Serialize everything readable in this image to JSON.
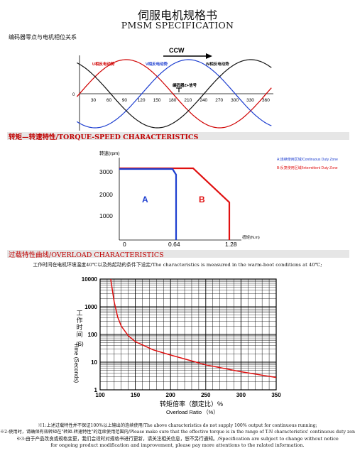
{
  "header": {
    "title_cn": "伺服电机规格书",
    "title_en": "PMSM SPECIFICATION"
  },
  "encoder_section": {
    "label": "编码器零点与电机相位关系",
    "direction": "CCW",
    "u_label": "U相反电动势",
    "v_label": "V相反电动势",
    "w_label": "W相反电动势",
    "z_label": "编码器Z+信号",
    "x_ticks": [
      "0",
      "30",
      "60",
      "90",
      "120",
      "150",
      "180",
      "210",
      "240",
      "270",
      "300",
      "330",
      "360"
    ],
    "colors": {
      "u": "#d00000",
      "v": "#1e3fd0",
      "w": "#111111"
    }
  },
  "torque_section": {
    "band_label": "转矩—转速特性/TORQUE-SPEED  CHARACTERISTICS",
    "ylabel": "转速(rpm)",
    "xlabel": "扭矩(N.m)",
    "y_ticks": [
      "3000",
      "2000",
      "1000"
    ],
    "x_ticks": [
      "0",
      "0.64",
      "1.28"
    ],
    "zone_a": "A",
    "zone_b": "B",
    "legend_a": "A:连续使用区域/Continuous Duty Zone",
    "legend_b": "B:反复使用区域/Intermittent Duty Zone",
    "colors": {
      "a": "#1e3fd0",
      "b": "#e01010"
    }
  },
  "overload_section": {
    "band_label": "过载特性曲线/OVERLOAD  CHARACTERISTICS",
    "note": "工作时间在电机环境温度40℃以及热起动的条件下设定/The characteristics is measured in the warm-boot conditions at 40℃;",
    "ylabel_cn": "工作时间",
    "ylabel_en": "Time (Seconds)",
    "ylabel_unit": "(S)",
    "y_ticks": [
      "10000",
      "1000",
      "100",
      "10",
      "1"
    ],
    "x_ticks": [
      "100",
      "150",
      "200",
      "250",
      "300",
      "350"
    ],
    "xlabel_cn": "转矩倍率（额定比）%",
    "xlabel_en": "Overload Ratio （%）",
    "curve_color": "#e01010"
  },
  "chart_data": {
    "type": "line",
    "title": "",
    "xlabel": "转矩倍率（额定比）% / Overload Ratio （%）",
    "ylabel": "工作时间 Time (Seconds) (S)",
    "x": [
      115,
      120,
      125,
      130,
      140,
      150,
      175,
      200,
      250,
      300,
      350
    ],
    "series": [
      {
        "values": [
          10000,
          1500,
          420,
          200,
          90,
          55,
          28,
          18,
          8,
          4.5,
          2.8
        ]
      }
    ],
    "xlim": [
      100,
      350
    ],
    "ylim": [
      1,
      10000
    ],
    "yscale": "log",
    "grid": true
  },
  "footnotes": {
    "line1": "※1:上述过载特性并不保证100%以上输出的连续使用/The above characteristics do not supply 100% output for continuous running;",
    "line2": "※2:使用时，请确保有效转矩在\"转矩-转速特性\"的连续使用范围内/Please make sure that the effective torque is in the range of T-N characteristics' continuous duty zone。",
    "line3": "※3:由于产品改良或规格变更，我们会适时对规格书进行更新，请关注相关信息，恕不另行通知。/Specification are subject to change without notice",
    "line4": "for ongoing product modification and improvement, please pay more attentions to the ralated information."
  }
}
